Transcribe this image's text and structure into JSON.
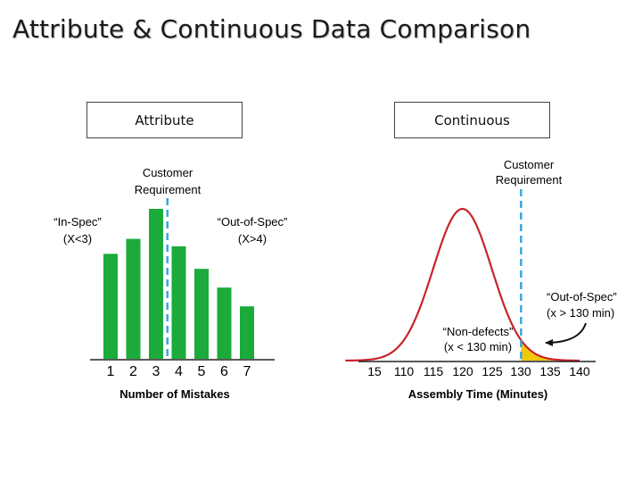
{
  "title": "Attribute & Continuous Data Comparison",
  "panels": {
    "attribute_label": "Attribute",
    "continuous_label": "Continuous"
  },
  "colors": {
    "bar": "#1aab3a",
    "curve": "#c8232b",
    "spec_line": "#3aa6de",
    "shade": "#f2c80f",
    "axis": "#222222"
  },
  "chart_data": [
    {
      "type": "bar",
      "categories": [
        "1",
        "2",
        "3",
        "4",
        "5",
        "6",
        "7"
      ],
      "values": [
        8.4,
        9.6,
        12.0,
        9.0,
        7.2,
        5.7,
        4.2
      ],
      "xlabel": "Number of Mistakes",
      "ylabel": "",
      "spec_limit": {
        "value": 3.5,
        "label_line1": "Customer",
        "label_line2": "Requirement"
      },
      "annotations": [
        {
          "text_line1": "“In-Spec”",
          "text_line2": "(X<3)"
        },
        {
          "text_line1": "“Out-of-Spec”",
          "text_line2": "(X>4)"
        }
      ]
    },
    {
      "type": "area",
      "x_ticks": [
        "15",
        "110",
        "115",
        "120",
        "125",
        "130",
        "135",
        "140"
      ],
      "xlabel": "Assembly Time (Minutes)",
      "ylabel": "",
      "distribution": {
        "mean": 120,
        "sd": 5
      },
      "spec_limit": {
        "value": 130,
        "label_line1": "Customer",
        "label_line2": "Requirement"
      },
      "shaded_region": "x > 130",
      "annotations": [
        {
          "text_line1": "“Out-of-Spec”",
          "text_line2": "(x > 130 min)"
        },
        {
          "text_line1": "“Non-defects”",
          "text_line2": "(x < 130 min)"
        }
      ]
    }
  ]
}
